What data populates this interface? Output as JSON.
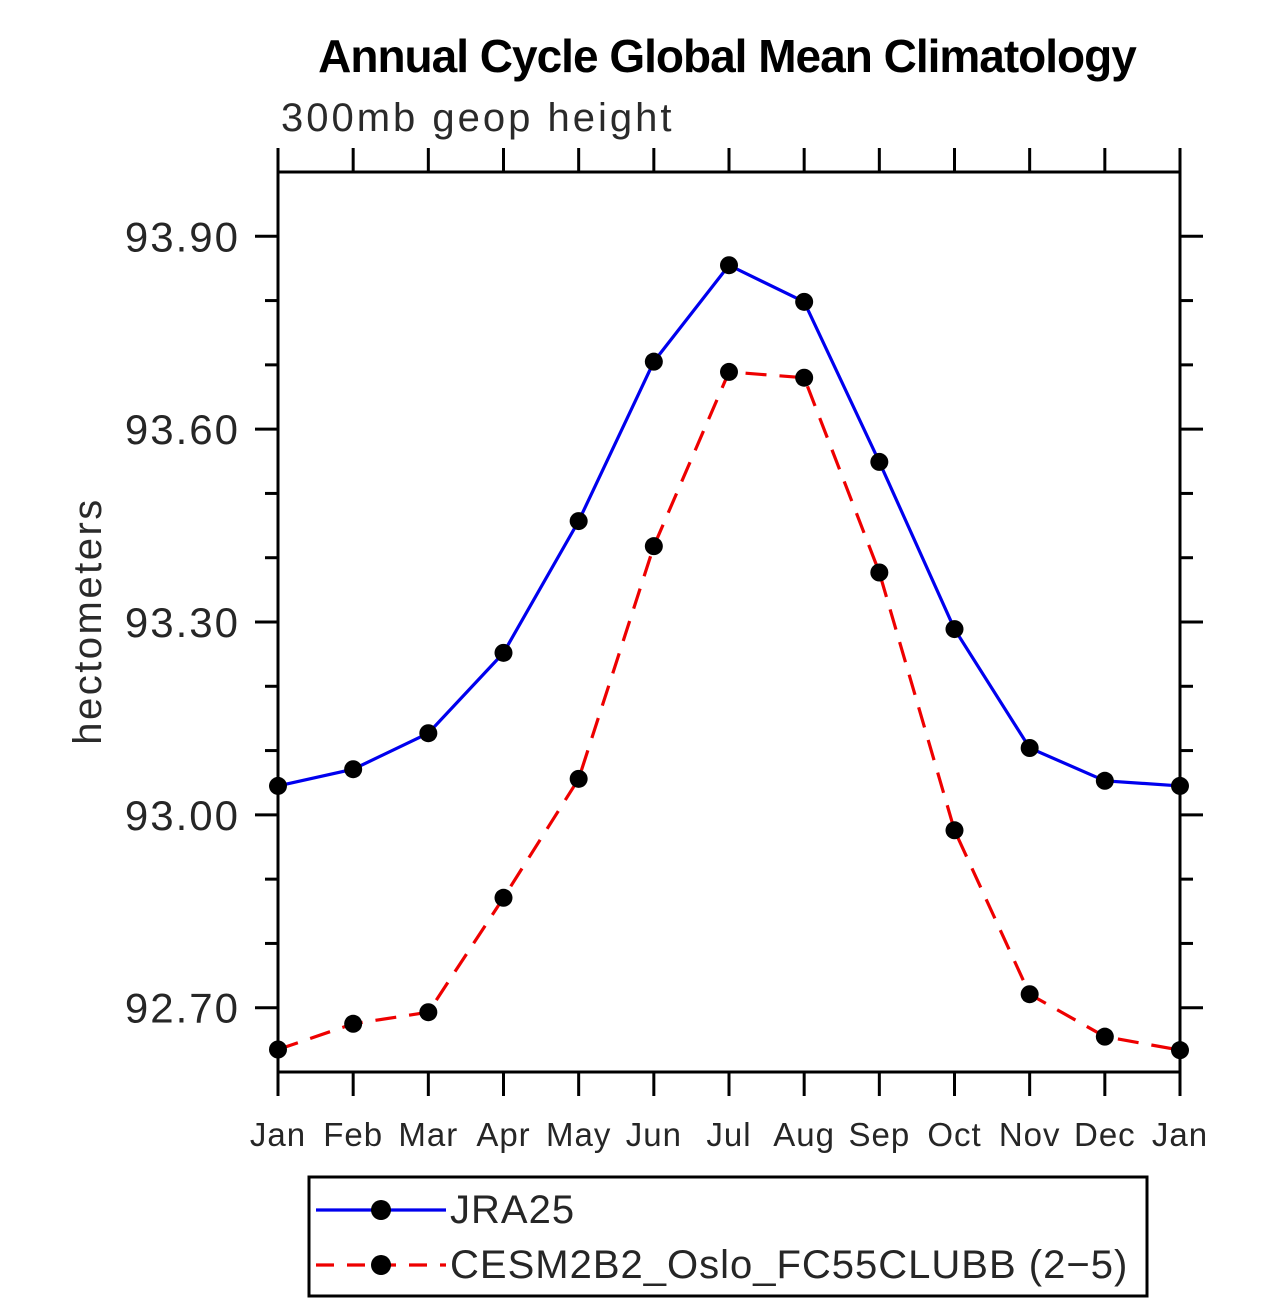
{
  "chart": {
    "title": "Annual Cycle Global Mean Climatology",
    "subtitle": "300mb geop height",
    "ylabel": "hectometers"
  },
  "chart_data": {
    "type": "line",
    "title": "Annual Cycle Global Mean Climatology",
    "subtitle": "300mb geop height",
    "xlabel": "",
    "ylabel": "hectometers",
    "categories": [
      "Jan",
      "Feb",
      "Mar",
      "Apr",
      "May",
      "Jun",
      "Jul",
      "Aug",
      "Sep",
      "Oct",
      "Nov",
      "Dec",
      "Jan"
    ],
    "ylim": [
      92.6,
      94.0
    ],
    "y_major_ticks": [
      92.7,
      93.0,
      93.3,
      93.6,
      93.9
    ],
    "y_major_tick_labels": [
      "92.70",
      "93.00",
      "93.30",
      "93.60",
      "93.90"
    ],
    "y_minor_step": 0.1,
    "grid": false,
    "legend_position": "bottom-left",
    "axis_color": "#000000",
    "marker_color": "#000000",
    "series": [
      {
        "name": "JRA25",
        "color": "#0000ee",
        "line_style": "solid",
        "marker": "circle",
        "values": [
          93.045,
          93.071,
          93.127,
          93.252,
          93.457,
          93.705,
          93.855,
          93.798,
          93.549,
          93.289,
          93.104,
          93.053,
          93.045
        ]
      },
      {
        "name": "CESM2B2_Oslo_FC55CLUBB (2−5)",
        "color": "#ee0000",
        "line_style": "dashed",
        "marker": "circle",
        "values": [
          92.635,
          92.675,
          92.693,
          92.871,
          93.056,
          93.418,
          93.689,
          93.68,
          93.377,
          92.976,
          92.721,
          92.655,
          92.634
        ]
      }
    ]
  }
}
